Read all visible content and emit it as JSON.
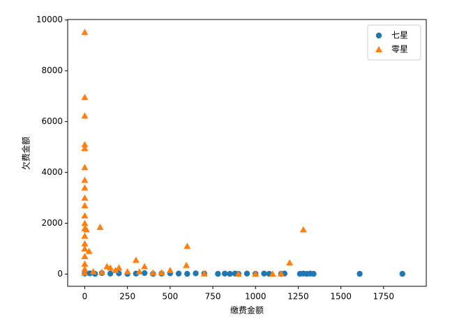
{
  "chart_data": {
    "type": "scatter",
    "x_label": "缴费金额",
    "y_label": "欠费金额",
    "xlim": [
      -100,
      2000
    ],
    "ylim": [
      -480,
      10020
    ],
    "xticks": [
      0,
      250,
      500,
      750,
      1000,
      1250,
      1500,
      1750
    ],
    "yticks": [
      0,
      2000,
      4000,
      6000,
      8000,
      10000
    ],
    "grid": false,
    "legend": "upper right",
    "series": [
      {
        "name": "七星",
        "color": "#1f77b4",
        "marker": "circle",
        "x": [
          0,
          30,
          60,
          100,
          150,
          200,
          250,
          300,
          350,
          400,
          450,
          500,
          550,
          600,
          650,
          700,
          780,
          820,
          850,
          880,
          900,
          950,
          1000,
          1050,
          1080,
          1150,
          1170,
          1260,
          1280,
          1300,
          1320,
          1340,
          1610,
          1860
        ],
        "values": [
          20,
          30,
          10,
          40,
          20,
          30,
          10,
          20,
          40,
          10,
          20,
          30,
          20,
          10,
          30,
          20,
          10,
          20,
          10,
          20,
          10,
          20,
          10,
          20,
          10,
          10,
          20,
          10,
          20,
          10,
          20,
          10,
          10,
          10
        ]
      },
      {
        "name": "零星",
        "color": "#ff7f0e",
        "marker": "triangle",
        "x": [
          0,
          0,
          0,
          0,
          0,
          0,
          0,
          0,
          0,
          0,
          0,
          0,
          0,
          0,
          0,
          0,
          0,
          0,
          0,
          0,
          10,
          25,
          90,
          300,
          350,
          600,
          595,
          1280,
          1200,
          150,
          200,
          500,
          50,
          100,
          250,
          400,
          700,
          900,
          1000,
          1100,
          1150,
          130,
          180,
          320,
          450
        ],
        "values": [
          9520,
          6960,
          6230,
          5100,
          4950,
          4200,
          3700,
          3400,
          3000,
          2700,
          2300,
          2000,
          1800,
          1500,
          1200,
          1000,
          700,
          400,
          200,
          50,
          1750,
          900,
          1850,
          550,
          300,
          1100,
          350,
          1750,
          450,
          250,
          250,
          150,
          100,
          80,
          100,
          50,
          20,
          10,
          10,
          10,
          20,
          300,
          150,
          100,
          60
        ]
      }
    ]
  }
}
